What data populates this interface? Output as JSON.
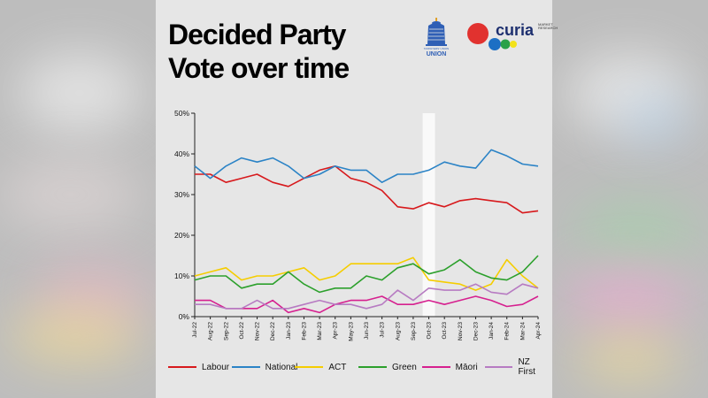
{
  "header": {
    "title_line1": "Decided Party",
    "title_line2": "Vote over time"
  },
  "logos": {
    "taxpayers_union": {
      "text": "TAXPAYERS' UNION",
      "word": "UNION",
      "color": "#2f5fb5"
    },
    "curia": {
      "word": "curia",
      "sub": "MARKET RESEARCH",
      "dot_colors": [
        "#e1322f",
        "#1d6fc4",
        "#2aa14a",
        "#f3e21a"
      ]
    }
  },
  "chart_data": {
    "type": "line",
    "x": [
      "Jul-22",
      "Aug-22",
      "Sep-22",
      "Oct-22",
      "Nov-22",
      "Dec-22",
      "Jan-23",
      "Feb-23",
      "Mar-23",
      "Apr-23",
      "May-23",
      "Jun-23",
      "Jul-23",
      "Aug-23",
      "Sep-23",
      "Oct-23",
      "Oct-23",
      "Nov-23",
      "Dec-23",
      "Jan-24",
      "Feb-24",
      "Mar-24",
      "Apr-24"
    ],
    "yticks": [
      "50%",
      "40%",
      "30%",
      "20%",
      "10%",
      "0%"
    ],
    "ylim": [
      0,
      50
    ],
    "y_unit": "%",
    "highlight_band_index": 15,
    "grid": false,
    "legend_position": "bottom",
    "series": [
      {
        "name": "Labour",
        "color": "#d7191c",
        "values": [
          35,
          35,
          33,
          34,
          35,
          33,
          32,
          34,
          36,
          37,
          34,
          33,
          31,
          27,
          26.5,
          28,
          27,
          28.5,
          29,
          28.5,
          28,
          25.5,
          26
        ]
      },
      {
        "name": "National",
        "color": "#2b83c6",
        "values": [
          37,
          34,
          37,
          39,
          38,
          39,
          37,
          34,
          35,
          37,
          36,
          36,
          33,
          35,
          35,
          36,
          38,
          37,
          36.5,
          41,
          39.5,
          37.5,
          37
        ]
      },
      {
        "name": "ACT",
        "color": "#f5cd00",
        "values": [
          10,
          11,
          12,
          9,
          10,
          10,
          11,
          12,
          9,
          10,
          13,
          13,
          13,
          13,
          14.5,
          9,
          8.5,
          8,
          6.5,
          8,
          14,
          10,
          7
        ]
      },
      {
        "name": "Green",
        "color": "#2ca02c",
        "values": [
          9,
          10,
          10,
          7,
          8,
          8,
          11,
          8,
          6,
          7,
          7,
          10,
          9,
          12,
          13,
          10.5,
          11.5,
          14,
          11,
          9.5,
          9,
          11,
          15
        ]
      },
      {
        "name": "Māori",
        "color": "#d6208f",
        "values": [
          4,
          4,
          2,
          2,
          2,
          4,
          1,
          2,
          1,
          3,
          4,
          4,
          5,
          3,
          3,
          4,
          3,
          4,
          5,
          4,
          2.5,
          3,
          5
        ]
      },
      {
        "name": "NZ First",
        "color": "#b77bc2",
        "values": [
          3,
          3,
          2,
          2,
          4,
          2,
          2,
          3,
          4,
          3,
          3,
          2,
          3,
          6.5,
          4,
          7,
          6.5,
          6.5,
          8,
          6,
          5.5,
          8,
          7
        ]
      }
    ]
  }
}
